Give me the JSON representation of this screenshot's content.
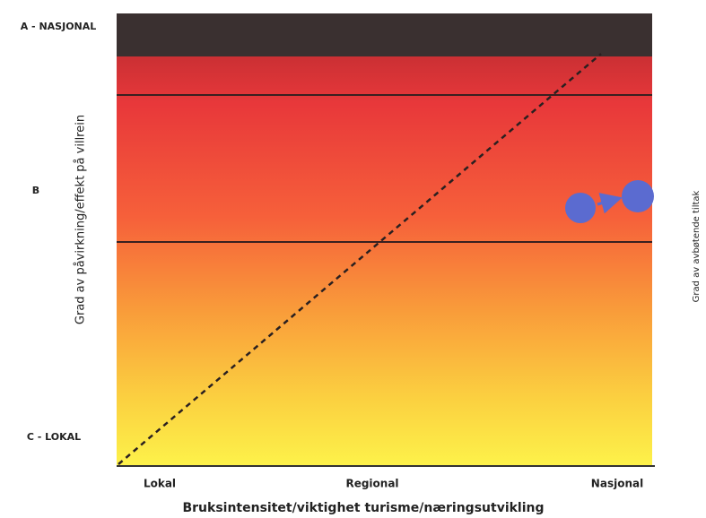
{
  "y_axis": {
    "title": "Grad av påvirkning/effekt på villrein",
    "levels": [
      "A - NASJONAL",
      "B",
      "C - LOKAL"
    ]
  },
  "x_axis": {
    "title": "Bruksintensitet/viktighet turisme/næringsutvikling",
    "levels": [
      "Lokal",
      "Regional",
      "Nasjonal"
    ]
  },
  "right_label": "Grad av avbøtende tiltak"
}
